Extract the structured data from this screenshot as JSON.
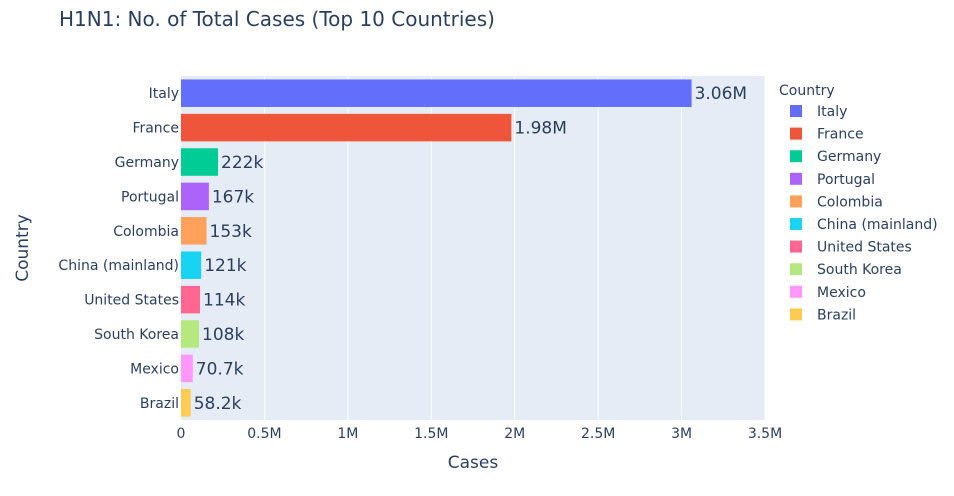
{
  "chart_data": {
    "type": "bar",
    "orientation": "horizontal",
    "title": "H1N1: No. of Total Cases (Top 10 Countries)",
    "xlabel": "Cases",
    "ylabel": "Country",
    "xlim": [
      0,
      3500000
    ],
    "grid": true,
    "x_ticks": [
      {
        "value": 0,
        "label": "0"
      },
      {
        "value": 500000,
        "label": "0.5M"
      },
      {
        "value": 1000000,
        "label": "1M"
      },
      {
        "value": 1500000,
        "label": "1.5M"
      },
      {
        "value": 2000000,
        "label": "2M"
      },
      {
        "value": 2500000,
        "label": "2.5M"
      },
      {
        "value": 3000000,
        "label": "3M"
      },
      {
        "value": 3500000,
        "label": "3.5M"
      }
    ],
    "categories": [
      "Italy",
      "France",
      "Germany",
      "Portugal",
      "Colombia",
      "China (mainland)",
      "United States",
      "South Korea",
      "Mexico",
      "Brazil"
    ],
    "values": [
      3060000,
      1980000,
      222000,
      167000,
      153000,
      121000,
      114000,
      108000,
      70700,
      58200
    ],
    "data_labels": [
      "3.06M",
      "1.98M",
      "222k",
      "167k",
      "153k",
      "121k",
      "114k",
      "108k",
      "70.7k",
      "58.2k"
    ],
    "colors": [
      "#636efa",
      "#EF553B",
      "#00cc96",
      "#ab63fa",
      "#FFA15A",
      "#19d3f3",
      "#FF6692",
      "#B6E880",
      "#FF97FF",
      "#FECB52"
    ],
    "legend": {
      "title": "Country",
      "placement": "right",
      "entries": [
        "Italy",
        "France",
        "Germany",
        "Portugal",
        "Colombia",
        "China (mainland)",
        "United States",
        "South Korea",
        "Mexico",
        "Brazil"
      ]
    }
  }
}
